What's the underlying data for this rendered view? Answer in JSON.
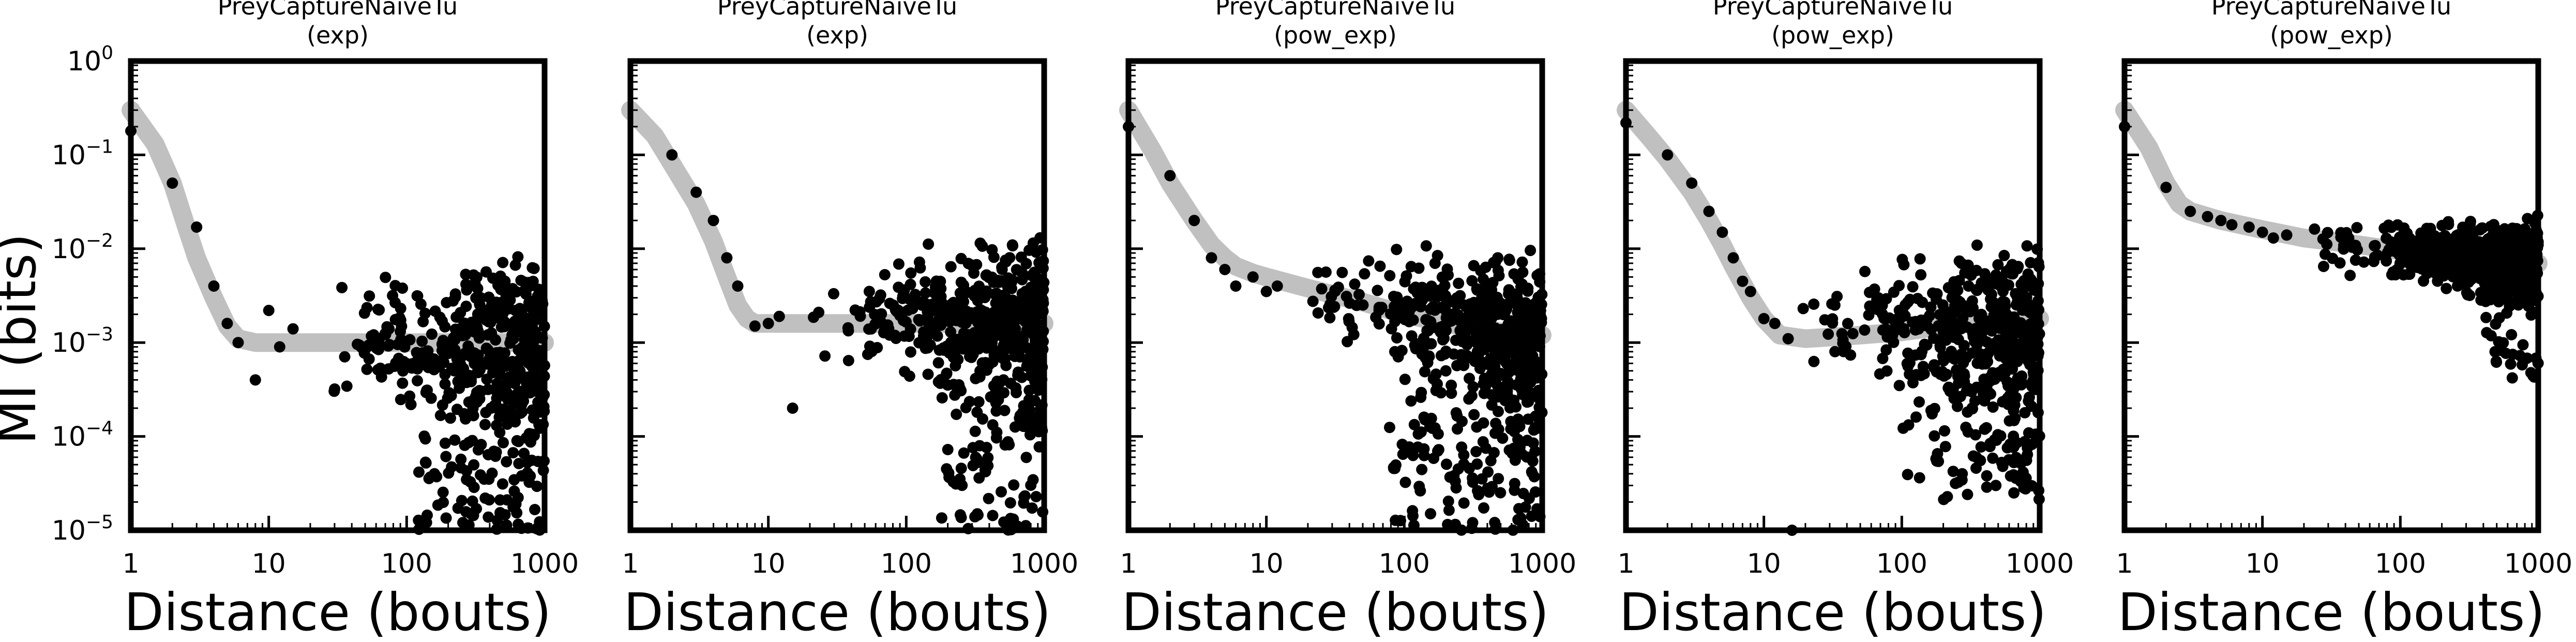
{
  "figure": {
    "ylabel": "MI (bits)"
  },
  "chart_data": [
    {
      "type": "scatter",
      "title_line1": "PreyCaptureNaiveTu",
      "title_line2": "(exp)",
      "xlabel": "Distance (bouts)",
      "ylabel": "MI (bits)",
      "xscale": "log",
      "yscale": "log",
      "xlim": [
        1,
        1000
      ],
      "ylim": [
        1e-05,
        1
      ],
      "x_ticks": [
        "1",
        "10",
        "100",
        "1000"
      ],
      "y_ticks": [
        {
          "base": "10",
          "exp": "0"
        },
        {
          "base": "10",
          "exp": "−1"
        },
        {
          "base": "10",
          "exp": "−2"
        },
        {
          "base": "10",
          "exp": "−3"
        },
        {
          "base": "10",
          "exp": "−4"
        },
        {
          "base": "10",
          "exp": "−5"
        }
      ],
      "fit_line": {
        "color": "#bdbdbd",
        "x": [
          1,
          1.5,
          2,
          2.5,
          3,
          4,
          5,
          6,
          8,
          10,
          20,
          50,
          100,
          1000
        ],
        "y": [
          0.3,
          0.13,
          0.05,
          0.018,
          0.008,
          0.003,
          0.0015,
          0.0011,
          0.001,
          0.001,
          0.001,
          0.001,
          0.001,
          0.001
        ]
      },
      "marker_color": "#000000",
      "seed": 11,
      "points_early": [
        [
          1,
          0.18
        ],
        [
          2,
          0.05
        ],
        [
          3,
          0.017
        ],
        [
          4,
          0.004
        ],
        [
          5,
          0.0016
        ],
        [
          6,
          0.001
        ],
        [
          8,
          0.0004
        ],
        [
          10,
          0.0022
        ],
        [
          12,
          0.0009
        ],
        [
          15,
          0.0014
        ]
      ],
      "cloud": {
        "x_start": 15,
        "n": 520,
        "center_start": 0.0012,
        "center_end": 0.0009,
        "log_sd_start": 0.25,
        "log_sd_end": 0.55,
        "low_tail_start": 120,
        "low_tail_frac": 0.3,
        "low_tail_min": 1e-05
      }
    },
    {
      "type": "scatter",
      "title_line1": "PreyCaptureNaiveTu",
      "title_line2": "(exp)",
      "xlabel": "Distance (bouts)",
      "xscale": "log",
      "yscale": "log",
      "xlim": [
        1,
        1000
      ],
      "ylim": [
        1e-05,
        1
      ],
      "x_ticks": [
        "1",
        "10",
        "100",
        "1000"
      ],
      "fit_line": {
        "color": "#bdbdbd",
        "x": [
          1,
          1.5,
          2,
          3,
          4,
          5,
          6,
          7,
          8,
          10,
          15,
          30,
          100,
          1000
        ],
        "y": [
          0.3,
          0.16,
          0.08,
          0.03,
          0.012,
          0.005,
          0.0025,
          0.0018,
          0.0016,
          0.0016,
          0.0016,
          0.0016,
          0.0016,
          0.0016
        ]
      },
      "marker_color": "#000000",
      "seed": 29,
      "points_early": [
        [
          2,
          0.1
        ],
        [
          3,
          0.04
        ],
        [
          4,
          0.02
        ],
        [
          5,
          0.008
        ],
        [
          6,
          0.004
        ],
        [
          8,
          0.0015
        ],
        [
          10,
          0.0016
        ],
        [
          15,
          0.0002
        ],
        [
          12,
          0.0019
        ]
      ],
      "cloud": {
        "x_start": 15,
        "n": 560,
        "center_start": 0.0018,
        "center_end": 0.0018,
        "log_sd_start": 0.2,
        "log_sd_end": 0.5,
        "low_tail_start": 180,
        "low_tail_frac": 0.3,
        "low_tail_min": 1e-05
      }
    },
    {
      "type": "scatter",
      "title_line1": "PreyCaptureNaiveTu",
      "title_line2": "(pow_exp)",
      "xlabel": "Distance (bouts)",
      "xscale": "log",
      "yscale": "log",
      "xlim": [
        1,
        1000
      ],
      "ylim": [
        1e-05,
        1
      ],
      "x_ticks": [
        "1",
        "10",
        "100",
        "1000"
      ],
      "fit_line": {
        "color": "#bdbdbd",
        "x": [
          1,
          1.5,
          2,
          3,
          4,
          5,
          6,
          8,
          10,
          20,
          50,
          100,
          200,
          500,
          1000
        ],
        "y": [
          0.3,
          0.11,
          0.05,
          0.02,
          0.011,
          0.008,
          0.0065,
          0.0055,
          0.005,
          0.0038,
          0.0027,
          0.002,
          0.0016,
          0.0013,
          0.0012
        ]
      },
      "marker_color": "#000000",
      "seed": 47,
      "points_early": [
        [
          1,
          0.2
        ],
        [
          2,
          0.06
        ],
        [
          3,
          0.02
        ],
        [
          4,
          0.008
        ],
        [
          5,
          0.006
        ],
        [
          6,
          0.004
        ],
        [
          8,
          0.005
        ],
        [
          10,
          0.0035
        ],
        [
          12,
          0.004
        ]
      ],
      "cloud": {
        "x_start": 12,
        "n": 600,
        "center_start": 0.004,
        "center_end": 0.0012,
        "log_sd_start": 0.15,
        "log_sd_end": 0.5,
        "low_tail_start": 60,
        "low_tail_frac": 0.3,
        "low_tail_min": 1e-05
      }
    },
    {
      "type": "scatter",
      "title_line1": "PreyCaptureNaiveTu",
      "title_line2": "(pow_exp)",
      "xlabel": "Distance (bouts)",
      "xscale": "log",
      "yscale": "log",
      "xlim": [
        1,
        1000
      ],
      "ylim": [
        1e-05,
        1
      ],
      "x_ticks": [
        "1",
        "10",
        "100",
        "1000"
      ],
      "fit_line": {
        "color": "#bdbdbd",
        "x": [
          1,
          1.5,
          2,
          3,
          4,
          5,
          6,
          8,
          10,
          13,
          20,
          50,
          100,
          200,
          500,
          1000
        ],
        "y": [
          0.3,
          0.15,
          0.09,
          0.04,
          0.02,
          0.011,
          0.0065,
          0.003,
          0.0018,
          0.0012,
          0.0011,
          0.0012,
          0.0013,
          0.0015,
          0.0017,
          0.0018
        ]
      },
      "marker_color": "#000000",
      "seed": 71,
      "points_early": [
        [
          1,
          0.22
        ],
        [
          2,
          0.1
        ],
        [
          3,
          0.05
        ],
        [
          4,
          0.025
        ],
        [
          5,
          0.015
        ],
        [
          6,
          0.008
        ],
        [
          7,
          0.0045
        ],
        [
          8,
          0.0035
        ],
        [
          10,
          0.0018
        ],
        [
          12,
          0.0016
        ],
        [
          15,
          0.0011
        ],
        [
          16,
          1e-05
        ]
      ],
      "cloud": {
        "x_start": 15,
        "n": 540,
        "center_start": 0.0014,
        "center_end": 0.0016,
        "log_sd_start": 0.25,
        "log_sd_end": 0.5,
        "low_tail_start": 100,
        "low_tail_frac": 0.32,
        "low_tail_min": 2e-05
      }
    },
    {
      "type": "scatter",
      "title_line1": "PreyCaptureNaiveTu",
      "title_line2": "(pow_exp)",
      "xlabel": "Distance (bouts)",
      "xscale": "log",
      "yscale": "log",
      "xlim": [
        1,
        1000
      ],
      "ylim": [
        1e-05,
        1
      ],
      "x_ticks": [
        "1",
        "10",
        "100",
        "1000"
      ],
      "fit_line": {
        "color": "#bdbdbd",
        "x": [
          1,
          1.5,
          2,
          2.5,
          3,
          5,
          10,
          20,
          50,
          100,
          200,
          500,
          1000
        ],
        "y": [
          0.3,
          0.12,
          0.05,
          0.03,
          0.025,
          0.02,
          0.016,
          0.013,
          0.011,
          0.0095,
          0.0085,
          0.0075,
          0.007
        ]
      },
      "marker_color": "#000000",
      "seed": 97,
      "points_early": [
        [
          1,
          0.2
        ],
        [
          2,
          0.045
        ],
        [
          3,
          0.025
        ],
        [
          4,
          0.022
        ],
        [
          5,
          0.02
        ],
        [
          6,
          0.018
        ],
        [
          8,
          0.017
        ],
        [
          10,
          0.015
        ],
        [
          12,
          0.013
        ],
        [
          15,
          0.014
        ]
      ],
      "cloud": {
        "x_start": 15,
        "n": 620,
        "center_start": 0.012,
        "center_end": 0.007,
        "log_sd_start": 0.1,
        "log_sd_end": 0.25,
        "low_tail_start": 400,
        "low_tail_frac": 0.12,
        "low_tail_min": 0.0004
      }
    }
  ]
}
